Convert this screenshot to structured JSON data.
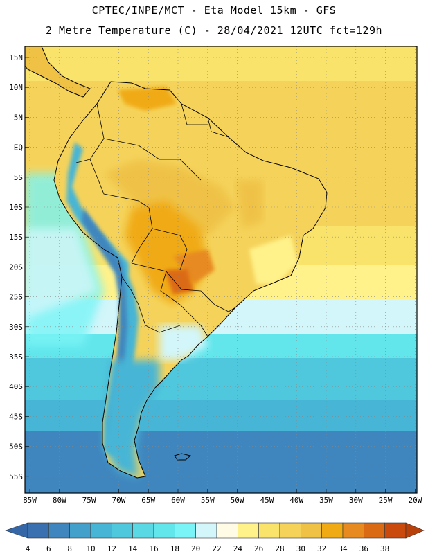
{
  "header": {
    "line1": "CPTEC/INPE/MCT -  Eta Model 15km - GFS",
    "line2": "2 Metre Temperature (C) - 28/04/2021 12UTC fct=129h"
  },
  "map": {
    "region": "South America",
    "field": "2 Metre Temperature",
    "units": "C",
    "lat_labels": [
      "15N",
      "10N",
      "5N",
      "EQ",
      "5S",
      "10S",
      "15S",
      "20S",
      "25S",
      "30S",
      "35S",
      "40S",
      "45S",
      "50S",
      "55S"
    ],
    "lon_labels": [
      "85W",
      "80W",
      "75W",
      "70W",
      "65W",
      "60W",
      "55W",
      "50W",
      "45W",
      "40W",
      "35W",
      "30W",
      "25W",
      "20W"
    ]
  },
  "colorbar": {
    "labels": [
      "4",
      "6",
      "8",
      "10",
      "12",
      "14",
      "16",
      "18",
      "20",
      "22",
      "24",
      "26",
      "28",
      "30",
      "32",
      "34",
      "36",
      "38"
    ],
    "colors": [
      "#3a6fb0",
      "#3f86be",
      "#42a0cb",
      "#47b5d6",
      "#4fc8dd",
      "#5ad8e4",
      "#62e6ec",
      "#7af4f6",
      "#d2f6fa",
      "#fffbe4",
      "#fff28a",
      "#f9e36a",
      "#f5d35b",
      "#efc246",
      "#f0aa14",
      "#e78a20",
      "#db6a14",
      "#c94a0c"
    ],
    "under_color": "#3567a6",
    "over_color": "#b8400b"
  }
}
